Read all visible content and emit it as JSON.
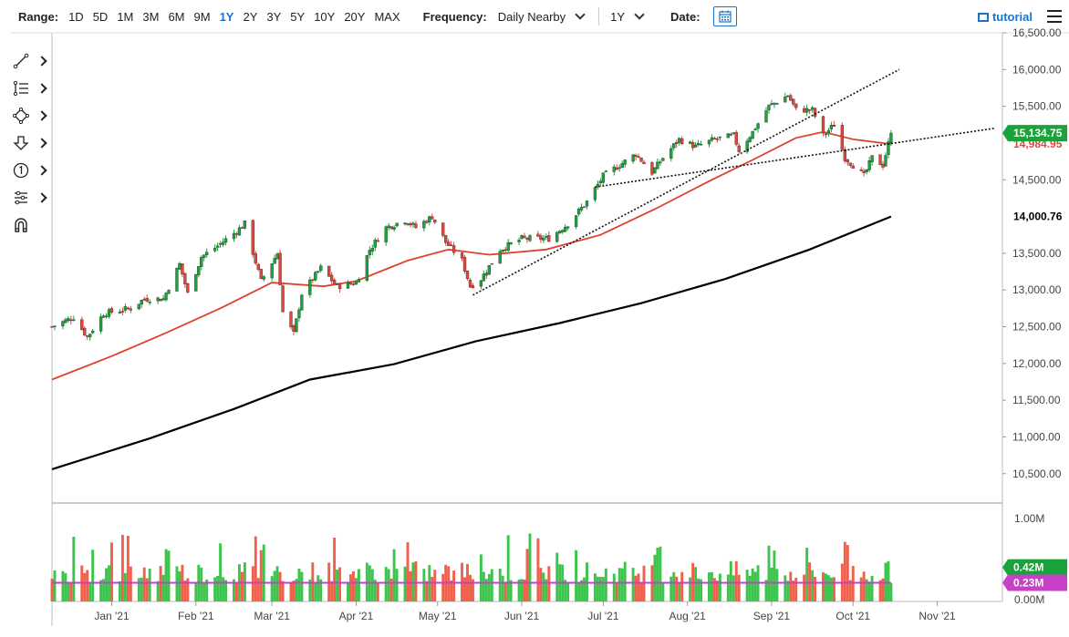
{
  "toolbar": {
    "range_label": "Range:",
    "ranges": [
      "1D",
      "5D",
      "1M",
      "3M",
      "6M",
      "9M",
      "1Y",
      "2Y",
      "3Y",
      "5Y",
      "10Y",
      "20Y",
      "MAX"
    ],
    "active_range": "1Y",
    "frequency_label": "Frequency:",
    "frequency_value": "Daily Nearby",
    "period_value": "1Y",
    "date_label": "Date:",
    "tutorial_label": "tutorial"
  },
  "tools": [
    "line-tool-icon",
    "fibonacci-tool-icon",
    "shape-tool-icon",
    "arrow-tool-icon",
    "numbered-marker-icon",
    "settings-tool-icon",
    "magnet-icon"
  ],
  "colors": {
    "up": "#1aa33a",
    "down": "#e0463a",
    "ma50": "#e0402e",
    "ma200": "#000000",
    "volume_up": "#3cc44c",
    "volume_down": "#f0604a",
    "volume_ma": "#c840c8",
    "price_label_bg": "#1aa33a",
    "vol_label_bg": "#1aa33a",
    "volma_label_bg": "#c840c8"
  },
  "chart_data": {
    "type": "candlestick",
    "instrument": "",
    "title": "",
    "xlabel": "",
    "ylabel": "",
    "ylim": [
      10100,
      16500
    ],
    "price_ticks": [
      "16,500.00",
      "16,000.00",
      "15,500.00",
      "15,000.00",
      "14,500.00",
      "14,000.00",
      "13,500.00",
      "13,000.00",
      "12,500.00",
      "12,000.00",
      "11,500.00",
      "11,000.00",
      "10,500.00"
    ],
    "x_tick_labels": [
      "Jan '21",
      "Feb '21",
      "Mar '21",
      "Apr '21",
      "May '21",
      "Jun '21",
      "Jul '21",
      "Aug '21",
      "Sep '21",
      "Oct '21",
      "Nov '21"
    ],
    "x_range": [
      "2020-12-10",
      "2021-11-25"
    ],
    "x_tick_dates": [
      "2021-01-01",
      "2021-02-01",
      "2021-03-01",
      "2021-04-01",
      "2021-05-01",
      "2021-06-01",
      "2021-07-01",
      "2021-08-01",
      "2021-09-01",
      "2021-10-01",
      "2021-11-01"
    ],
    "price_path": [
      [
        "2020-12-10",
        12500
      ],
      [
        "2020-12-18",
        12630
      ],
      [
        "2020-12-23",
        12360
      ],
      [
        "2020-12-29",
        12680
      ],
      [
        "2021-01-08",
        12750
      ],
      [
        "2021-01-13",
        12880
      ],
      [
        "2021-01-20",
        12880
      ],
      [
        "2021-01-26",
        13350
      ],
      [
        "2021-01-29",
        12950
      ],
      [
        "2021-02-03",
        13450
      ],
      [
        "2021-02-09",
        13600
      ],
      [
        "2021-02-16",
        13800
      ],
      [
        "2021-02-19",
        13900
      ],
      [
        "2021-02-25",
        13120
      ],
      [
        "2021-03-03",
        13500
      ],
      [
        "2021-03-05",
        12700
      ],
      [
        "2021-03-09",
        12400
      ],
      [
        "2021-03-12",
        12950
      ],
      [
        "2021-03-19",
        13300
      ],
      [
        "2021-03-25",
        13050
      ],
      [
        "2021-04-01",
        13100
      ],
      [
        "2021-04-06",
        13550
      ],
      [
        "2021-04-12",
        13850
      ],
      [
        "2021-04-19",
        13950
      ],
      [
        "2021-04-23",
        13850
      ],
      [
        "2021-04-29",
        14000
      ],
      [
        "2021-05-04",
        13650
      ],
      [
        "2021-05-10",
        13400
      ],
      [
        "2021-05-13",
        13050
      ],
      [
        "2021-05-17",
        13150
      ],
      [
        "2021-05-24",
        13550
      ],
      [
        "2021-06-01",
        13700
      ],
      [
        "2021-06-07",
        13700
      ],
      [
        "2021-06-11",
        13700
      ],
      [
        "2021-06-18",
        13900
      ],
      [
        "2021-06-25",
        14200
      ],
      [
        "2021-07-01",
        14550
      ],
      [
        "2021-07-07",
        14700
      ],
      [
        "2021-07-13",
        14850
      ],
      [
        "2021-07-19",
        14600
      ],
      [
        "2021-07-23",
        14800
      ],
      [
        "2021-07-29",
        15050
      ],
      [
        "2021-08-04",
        14950
      ],
      [
        "2021-08-11",
        15050
      ],
      [
        "2021-08-18",
        15100
      ],
      [
        "2021-08-20",
        14900
      ],
      [
        "2021-08-25",
        15150
      ],
      [
        "2021-08-31",
        15500
      ],
      [
        "2021-09-07",
        15650
      ],
      [
        "2021-09-10",
        15450
      ],
      [
        "2021-09-16",
        15450
      ],
      [
        "2021-09-20",
        15100
      ],
      [
        "2021-09-24",
        15250
      ],
      [
        "2021-09-28",
        14800
      ],
      [
        "2021-10-01",
        14700
      ],
      [
        "2021-10-05",
        14550
      ],
      [
        "2021-10-08",
        14800
      ],
      [
        "2021-10-12",
        14700
      ],
      [
        "2021-10-15",
        15135
      ]
    ],
    "ma50_path": [
      [
        "2020-12-10",
        11780
      ],
      [
        "2021-01-01",
        12100
      ],
      [
        "2021-01-20",
        12400
      ],
      [
        "2021-02-10",
        12750
      ],
      [
        "2021-03-01",
        13100
      ],
      [
        "2021-03-20",
        13050
      ],
      [
        "2021-04-01",
        13120
      ],
      [
        "2021-04-20",
        13400
      ],
      [
        "2021-05-05",
        13550
      ],
      [
        "2021-05-20",
        13480
      ],
      [
        "2021-06-10",
        13550
      ],
      [
        "2021-06-30",
        13750
      ],
      [
        "2021-07-20",
        14100
      ],
      [
        "2021-08-10",
        14500
      ],
      [
        "2021-08-25",
        14770
      ],
      [
        "2021-09-10",
        15070
      ],
      [
        "2021-09-20",
        15150
      ],
      [
        "2021-10-01",
        15050
      ],
      [
        "2021-10-15",
        14985
      ]
    ],
    "ma200_path": [
      [
        "2020-12-10",
        10560
      ],
      [
        "2021-01-15",
        10980
      ],
      [
        "2021-02-15",
        11380
      ],
      [
        "2021-03-15",
        11780
      ],
      [
        "2021-04-15",
        11990
      ],
      [
        "2021-05-15",
        12300
      ],
      [
        "2021-06-15",
        12550
      ],
      [
        "2021-07-15",
        12820
      ],
      [
        "2021-08-15",
        13150
      ],
      [
        "2021-09-15",
        13550
      ],
      [
        "2021-10-15",
        14000
      ]
    ],
    "trendlines": [
      {
        "from": [
          "2021-05-14",
          12930
        ],
        "to": [
          "2021-10-18",
          16000
        ]
      },
      {
        "from": [
          "2021-06-28",
          14400
        ],
        "to": [
          "2021-11-22",
          15200
        ]
      }
    ],
    "last_price": "15,134.75",
    "last_price_value": 15134.75,
    "ma50_label": "14,984.95",
    "ma50_value": 14984.95,
    "ma200_label": "14,000.76",
    "ma200_value": 14000.76,
    "volume": {
      "ylim": [
        0,
        1.0
      ],
      "ticks": [
        "1.00M",
        "0.00M"
      ],
      "last_volume": "0.42M",
      "last_volume_value": 0.42,
      "volume_ma_label": "0.23M",
      "volume_ma_value": 0.23
    }
  }
}
